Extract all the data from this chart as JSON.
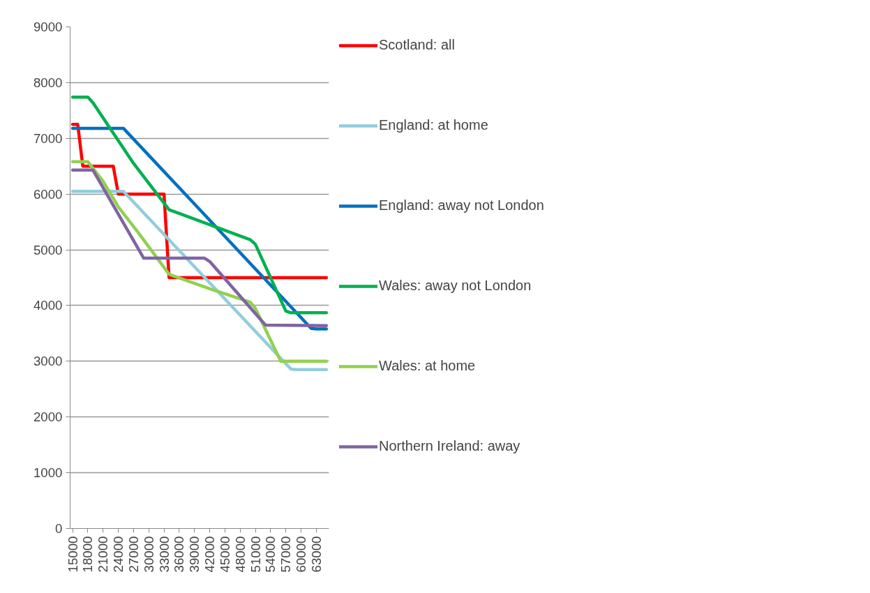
{
  "chart_data": {
    "type": "line",
    "xlim": [
      14500,
      65500
    ],
    "ylim": [
      0,
      9000
    ],
    "xticks": [
      15000,
      18000,
      21000,
      24000,
      27000,
      30000,
      33000,
      36000,
      39000,
      42000,
      45000,
      48000,
      51000,
      54000,
      57000,
      60000,
      63000
    ],
    "yticks": [
      0,
      1000,
      2000,
      3000,
      4000,
      5000,
      6000,
      7000,
      8000,
      9000
    ],
    "grid": "y",
    "legend": "right",
    "marker": "none",
    "line_style": "solid",
    "series": [
      {
        "name": "Scotland: all",
        "color": "#ff0000",
        "x": [
          15000,
          16000,
          17000,
          23000,
          24000,
          33000,
          34000,
          65000
        ],
        "values": [
          7250,
          7250,
          6500,
          6500,
          6000,
          6000,
          4500,
          4500
        ]
      },
      {
        "name": "England: at home",
        "color": "#92cddc",
        "x": [
          15000,
          25000,
          58000,
          59000,
          65000
        ],
        "values": [
          6050,
          6050,
          2860,
          2850,
          2850
        ]
      },
      {
        "name": "England: away not London",
        "color": "#0070c0",
        "x": [
          15000,
          25000,
          62000,
          63000,
          65000
        ],
        "values": [
          7180,
          7180,
          3590,
          3580,
          3580
        ]
      },
      {
        "name": "Wales: away not London",
        "color": "#00b050",
        "x": [
          15000,
          18000,
          19000,
          27000,
          34000,
          50000,
          51000,
          57000,
          58000,
          65000
        ],
        "values": [
          7740,
          7740,
          7640,
          6550,
          5720,
          5180,
          5100,
          3900,
          3870,
          3870
        ]
      },
      {
        "name": "Wales: at home",
        "color": "#92d050",
        "x": [
          15000,
          18000,
          21000,
          24000,
          28000,
          34000,
          42000,
          50000,
          51000,
          56000,
          65000
        ],
        "values": [
          6580,
          6580,
          6230,
          5770,
          5300,
          4560,
          4300,
          4060,
          3950,
          3000,
          3000
        ]
      },
      {
        "name": "Northern Ireland: away",
        "color": "#8064a2",
        "x": [
          15000,
          19000,
          29000,
          41000,
          42000,
          53000,
          65000
        ],
        "values": [
          6430,
          6430,
          4850,
          4850,
          4790,
          3650,
          3640
        ]
      }
    ]
  }
}
